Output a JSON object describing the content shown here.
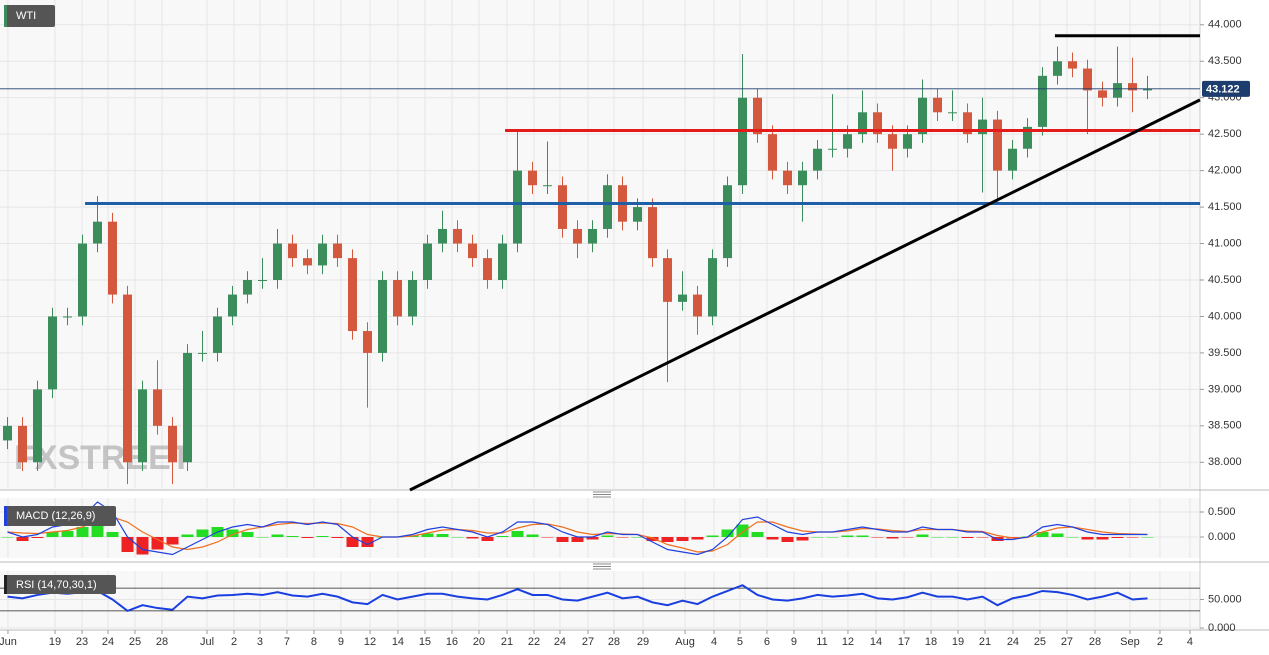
{
  "chart_data": [
    {
      "type": "candlestick",
      "title": "WTI",
      "watermark": "FXSTREET",
      "up_color": "#3b8d5c",
      "down_color": "#d4583e",
      "grid": true,
      "xlim": [
        0,
        80
      ],
      "xticks": [
        {
          "value": 0.53,
          "label": "Jun"
        },
        {
          "value": 3.67,
          "label": "19"
        },
        {
          "value": 5.47,
          "label": "23"
        },
        {
          "value": 7.2,
          "label": "24"
        },
        {
          "value": 9,
          "label": "25"
        },
        {
          "value": 10.8,
          "label": "28"
        },
        {
          "value": 13.8,
          "label": "Jul"
        },
        {
          "value": 15.6,
          "label": "2"
        },
        {
          "value": 17.33,
          "label": "3"
        },
        {
          "value": 19.13,
          "label": "7"
        },
        {
          "value": 20.93,
          "label": "8"
        },
        {
          "value": 22.73,
          "label": "9"
        },
        {
          "value": 24.67,
          "label": "12"
        },
        {
          "value": 26.53,
          "label": "14"
        },
        {
          "value": 28.33,
          "label": "15"
        },
        {
          "value": 30.13,
          "label": "16"
        },
        {
          "value": 31.93,
          "label": "20"
        },
        {
          "value": 33.8,
          "label": "21"
        },
        {
          "value": 35.6,
          "label": "22"
        },
        {
          "value": 37.33,
          "label": "24"
        },
        {
          "value": 39.2,
          "label": "27"
        },
        {
          "value": 40.93,
          "label": "28"
        },
        {
          "value": 42.87,
          "label": "29"
        },
        {
          "value": 45.67,
          "label": "Aug"
        },
        {
          "value": 47.6,
          "label": "4"
        },
        {
          "value": 49.33,
          "label": "5"
        },
        {
          "value": 51.13,
          "label": "6"
        },
        {
          "value": 52.93,
          "label": "9"
        },
        {
          "value": 54.8,
          "label": "11"
        },
        {
          "value": 56.53,
          "label": "12"
        },
        {
          "value": 58.4,
          "label": "14"
        },
        {
          "value": 60.27,
          "label": "17"
        },
        {
          "value": 62.07,
          "label": "18"
        },
        {
          "value": 63.87,
          "label": "19"
        },
        {
          "value": 65.67,
          "label": "21"
        },
        {
          "value": 67.53,
          "label": "24"
        },
        {
          "value": 69.33,
          "label": "25"
        },
        {
          "value": 71.13,
          "label": "27"
        },
        {
          "value": 73,
          "label": "28"
        },
        {
          "value": 75.33,
          "label": "Sep"
        },
        {
          "value": 77.33,
          "label": "2"
        },
        {
          "value": 79.33,
          "label": "4"
        }
      ],
      "ylim": [
        37.62,
        44.34
      ],
      "yticks": [
        {
          "value": 38,
          "label": "38.000"
        },
        {
          "value": 38.5,
          "label": "38.500"
        },
        {
          "value": 39,
          "label": "39.000"
        },
        {
          "value": 39.5,
          "label": "39.500"
        },
        {
          "value": 40,
          "label": "40.000"
        },
        {
          "value": 40.5,
          "label": "40.500"
        },
        {
          "value": 41,
          "label": "41.000"
        },
        {
          "value": 41.5,
          "label": "41.500"
        },
        {
          "value": 42,
          "label": "42.000"
        },
        {
          "value": 42.5,
          "label": "42.500"
        },
        {
          "value": 43,
          "label": "43.000"
        },
        {
          "value": 43.5,
          "label": "43.500"
        },
        {
          "value": 44,
          "label": "44.000"
        }
      ],
      "last": {
        "value": 43.122,
        "label": "43.122",
        "color": "#1c3d6e"
      },
      "lines": [
        {
          "color": "#1f5fa8",
          "x": [
            5.67,
            80
          ],
          "y": [
            41.55,
            41.55
          ]
        },
        {
          "color": "#e31b1b",
          "x": [
            33.67,
            80
          ],
          "y": [
            42.55,
            42.55
          ]
        },
        {
          "color": "#000000",
          "x": [
            70.33,
            80
          ],
          "y": [
            43.85,
            43.85
          ]
        },
        {
          "color": "#000000",
          "x": [
            27.33,
            80
          ],
          "y": [
            37.62,
            42.97
          ]
        }
      ],
      "ohlc": [
        [
          38.3,
          38.62,
          38.18,
          38.5
        ],
        [
          38.5,
          38.62,
          37.88,
          38.0
        ],
        [
          38.0,
          39.12,
          37.88,
          39.0
        ],
        [
          39.0,
          40.12,
          38.88,
          40.0
        ],
        [
          40.0,
          40.12,
          39.88,
          40.0
        ],
        [
          40.0,
          41.12,
          39.88,
          41.0
        ],
        [
          41.0,
          41.65,
          40.88,
          41.3
        ],
        [
          41.3,
          41.42,
          40.18,
          40.3
        ],
        [
          40.3,
          40.42,
          37.7,
          38.0
        ],
        [
          38.0,
          39.12,
          37.88,
          39.0
        ],
        [
          39.0,
          39.4,
          38.38,
          38.5
        ],
        [
          38.5,
          38.62,
          37.7,
          38.0
        ],
        [
          38.0,
          39.62,
          37.88,
          39.5
        ],
        [
          39.5,
          39.8,
          39.38,
          39.5
        ],
        [
          39.5,
          40.12,
          39.38,
          40.0
        ],
        [
          40.0,
          40.42,
          39.88,
          40.3
        ],
        [
          40.3,
          40.62,
          40.18,
          40.5
        ],
        [
          40.5,
          40.8,
          40.38,
          40.5
        ],
        [
          40.5,
          41.2,
          40.38,
          41.0
        ],
        [
          41.0,
          41.12,
          40.68,
          40.8
        ],
        [
          40.8,
          40.92,
          40.58,
          40.7
        ],
        [
          40.7,
          41.12,
          40.58,
          41.0
        ],
        [
          41.0,
          41.12,
          40.68,
          40.8
        ],
        [
          40.8,
          40.92,
          39.68,
          39.8
        ],
        [
          39.8,
          39.92,
          38.75,
          39.5
        ],
        [
          39.5,
          40.62,
          39.38,
          40.5
        ],
        [
          40.5,
          40.62,
          39.88,
          40.0
        ],
        [
          40.0,
          40.62,
          39.88,
          40.5
        ],
        [
          40.5,
          41.12,
          40.38,
          41.0
        ],
        [
          41.0,
          41.45,
          40.88,
          41.2
        ],
        [
          41.2,
          41.32,
          40.88,
          41.0
        ],
        [
          41.0,
          41.12,
          40.68,
          40.8
        ],
        [
          40.8,
          40.92,
          40.38,
          40.5
        ],
        [
          40.5,
          41.12,
          40.38,
          41.0
        ],
        [
          41.0,
          42.55,
          40.88,
          42.0
        ],
        [
          42.0,
          42.12,
          41.68,
          41.8
        ],
        [
          41.8,
          42.4,
          41.68,
          41.8
        ],
        [
          41.8,
          41.92,
          41.08,
          41.2
        ],
        [
          41.2,
          41.32,
          40.8,
          41.0
        ],
        [
          41.0,
          41.32,
          40.88,
          41.2
        ],
        [
          41.2,
          41.95,
          41.08,
          41.8
        ],
        [
          41.8,
          41.92,
          41.18,
          41.3
        ],
        [
          41.3,
          41.62,
          41.18,
          41.5
        ],
        [
          41.5,
          41.62,
          40.68,
          40.8
        ],
        [
          40.8,
          40.92,
          39.1,
          40.2
        ],
        [
          40.2,
          40.62,
          40.08,
          40.3
        ],
        [
          40.3,
          40.42,
          39.75,
          40.0
        ],
        [
          40.0,
          40.92,
          39.88,
          40.8
        ],
        [
          40.8,
          41.92,
          40.68,
          41.8
        ],
        [
          41.8,
          43.6,
          41.68,
          43.0
        ],
        [
          43.0,
          43.12,
          42.38,
          42.5
        ],
        [
          42.5,
          42.62,
          41.88,
          42.0
        ],
        [
          42.0,
          42.12,
          41.68,
          41.8
        ],
        [
          41.8,
          42.12,
          41.3,
          42.0
        ],
        [
          42.0,
          42.42,
          41.88,
          42.3
        ],
        [
          42.3,
          43.05,
          42.18,
          42.3
        ],
        [
          42.3,
          42.62,
          42.18,
          42.5
        ],
        [
          42.5,
          43.1,
          42.38,
          42.8
        ],
        [
          42.8,
          42.92,
          42.38,
          42.5
        ],
        [
          42.5,
          42.62,
          42.0,
          42.3
        ],
        [
          42.3,
          42.62,
          42.18,
          42.5
        ],
        [
          42.5,
          43.25,
          42.38,
          43.0
        ],
        [
          43.0,
          43.12,
          42.68,
          42.8
        ],
        [
          42.8,
          43.1,
          42.68,
          42.8
        ],
        [
          42.8,
          42.92,
          42.38,
          42.5
        ],
        [
          42.5,
          43.0,
          41.7,
          42.7
        ],
        [
          42.7,
          42.82,
          41.55,
          42.0
        ],
        [
          42.0,
          42.42,
          41.88,
          42.3
        ],
        [
          42.3,
          42.72,
          42.18,
          42.6
        ],
        [
          42.6,
          43.42,
          42.48,
          43.3
        ],
        [
          43.3,
          43.7,
          43.18,
          43.5
        ],
        [
          43.5,
          43.62,
          43.28,
          43.4
        ],
        [
          43.4,
          43.52,
          42.5,
          43.1
        ],
        [
          43.1,
          43.22,
          42.88,
          43.0
        ],
        [
          43.0,
          43.7,
          42.88,
          43.2
        ],
        [
          43.2,
          43.55,
          42.8,
          43.1
        ],
        [
          43.1,
          43.3,
          42.98,
          43.12
        ]
      ]
    },
    {
      "type": "macd",
      "title": "MACD (12,26,9)",
      "grid": true,
      "ylim": [
        -0.42,
        0.78
      ],
      "yticks": [
        {
          "value": 0,
          "label": "0.000"
        },
        {
          "value": 0.5,
          "label": "0.500"
        }
      ],
      "up_color": "#22dd22",
      "down_color": "#ee2222",
      "macd_color": "#2040e0",
      "signal_color": "#f07020",
      "histogram": [
        0,
        -0.08,
        -0.02,
        0.1,
        0.12,
        0.2,
        0.35,
        0.1,
        -0.3,
        -0.35,
        -0.25,
        -0.15,
        0.05,
        0.15,
        0.2,
        0.15,
        0.1,
        0,
        0.05,
        0.02,
        -0.02,
        0.02,
        -0.02,
        -0.2,
        -0.2,
        0,
        0,
        0.03,
        0.07,
        0.06,
        0,
        -0.03,
        -0.08,
        0.02,
        0.12,
        0.05,
        -0.01,
        -0.1,
        -0.1,
        -0.05,
        0.03,
        -0.01,
        0,
        -0.08,
        -0.1,
        -0.08,
        -0.05,
        0.03,
        0.15,
        0.25,
        0.1,
        -0.05,
        -0.1,
        -0.07,
        0,
        0,
        0.03,
        0.03,
        -0.01,
        -0.03,
        -0.01,
        0.05,
        0,
        0,
        -0.02,
        -0.01,
        -0.08,
        -0.03,
        0.01,
        0.1,
        0.07,
        0,
        -0.05,
        -0.05,
        -0.02,
        -0.01,
        0
      ],
      "macd": [
        0.1,
        0.0,
        0.05,
        0.2,
        0.25,
        0.4,
        0.7,
        0.5,
        0.0,
        -0.25,
        -0.3,
        -0.35,
        -0.2,
        -0.05,
        0.1,
        0.2,
        0.25,
        0.2,
        0.3,
        0.3,
        0.25,
        0.3,
        0.25,
        0.0,
        -0.15,
        0.0,
        0.0,
        0.05,
        0.15,
        0.2,
        0.15,
        0.1,
        0.0,
        0.1,
        0.3,
        0.3,
        0.25,
        0.1,
        0.0,
        0.0,
        0.1,
        0.05,
        0.05,
        -0.1,
        -0.25,
        -0.3,
        -0.35,
        -0.25,
        0.0,
        0.35,
        0.4,
        0.25,
        0.1,
        0.05,
        0.1,
        0.1,
        0.15,
        0.2,
        0.15,
        0.1,
        0.1,
        0.2,
        0.15,
        0.15,
        0.1,
        0.1,
        -0.05,
        -0.05,
        0.0,
        0.2,
        0.25,
        0.2,
        0.1,
        0.05,
        0.05,
        0.05,
        0.05
      ],
      "signal": [
        0.1,
        0.08,
        0.07,
        0.1,
        0.13,
        0.2,
        0.35,
        0.4,
        0.3,
        0.1,
        -0.05,
        -0.2,
        -0.25,
        -0.2,
        -0.1,
        0.05,
        0.15,
        0.2,
        0.25,
        0.28,
        0.27,
        0.28,
        0.27,
        0.2,
        0.05,
        0.0,
        0.0,
        0.02,
        0.08,
        0.14,
        0.15,
        0.13,
        0.08,
        0.08,
        0.18,
        0.25,
        0.26,
        0.2,
        0.1,
        0.05,
        0.07,
        0.06,
        0.05,
        -0.02,
        -0.15,
        -0.22,
        -0.3,
        -0.28,
        -0.15,
        0.1,
        0.3,
        0.3,
        0.2,
        0.12,
        0.1,
        0.1,
        0.12,
        0.17,
        0.16,
        0.13,
        0.11,
        0.15,
        0.15,
        0.15,
        0.12,
        0.11,
        0.03,
        -0.02,
        -0.01,
        0.1,
        0.18,
        0.2,
        0.15,
        0.1,
        0.07,
        0.06,
        0.05
      ]
    },
    {
      "type": "rsi",
      "title": "RSI (14,70,30,1)",
      "grid": true,
      "ylim": [
        0,
        100
      ],
      "yticks": [
        {
          "value": 0,
          "label": "0.000"
        },
        {
          "value": 50,
          "label": "50.000"
        }
      ],
      "levels": [
        70,
        30
      ],
      "color": "#1a3fe0",
      "values": [
        55,
        52,
        58,
        62,
        60,
        63,
        65,
        50,
        30,
        40,
        35,
        32,
        55,
        52,
        57,
        58,
        60,
        58,
        63,
        57,
        55,
        60,
        55,
        45,
        42,
        58,
        50,
        55,
        60,
        60,
        55,
        52,
        50,
        58,
        68,
        58,
        58,
        50,
        48,
        55,
        62,
        52,
        55,
        45,
        40,
        48,
        42,
        55,
        65,
        75,
        58,
        50,
        48,
        52,
        58,
        55,
        57,
        60,
        52,
        50,
        54,
        62,
        55,
        55,
        50,
        55,
        40,
        52,
        57,
        65,
        63,
        58,
        50,
        55,
        62,
        50,
        52
      ]
    }
  ]
}
